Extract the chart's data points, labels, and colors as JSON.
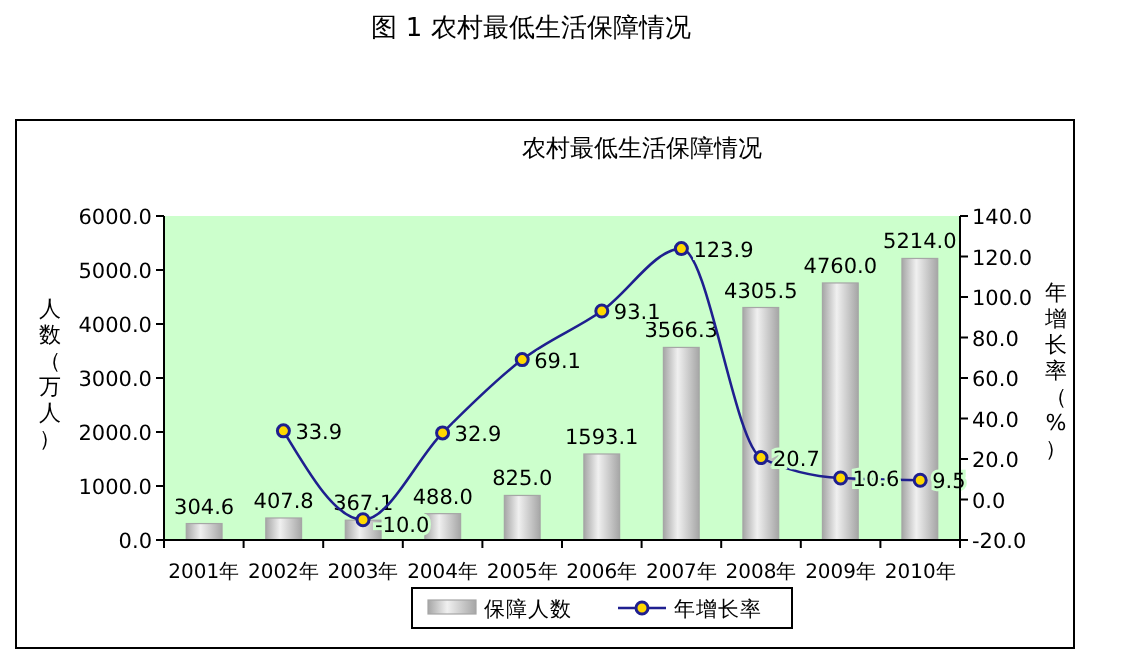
{
  "chart_data": {
    "type": "bar",
    "title": "农村最低生活保障情况",
    "annotations": [
      "图 1 农村最低生活保障情况"
    ],
    "ylabel": "人数（万人）",
    "y2label": "年增长率（%）",
    "categories": [
      "2001年",
      "2002年",
      "2003年",
      "2004年",
      "2005年",
      "2006年",
      "2007年",
      "2008年",
      "2009年",
      "2010年"
    ],
    "series": [
      {
        "name": "保障人数",
        "color": "#a6a6a6",
        "values": [
          304.6,
          407.8,
          367.1,
          488.0,
          825.0,
          1593.1,
          3566.3,
          4305.5,
          4760.0,
          5214.0
        ],
        "value_labels": [
          "304.6",
          "407.8",
          "367.1",
          "488.0",
          "825.0",
          "1593.1",
          "3566.3",
          "4305.5",
          "4760.0",
          "5214.0"
        ]
      },
      {
        "name": "年增长率",
        "type": "line",
        "axis": "y2",
        "color": "#1f1f8f",
        "marker": "circle",
        "values": [
          null,
          33.9,
          -10.0,
          32.9,
          69.1,
          93.1,
          123.9,
          20.7,
          10.6,
          9.5
        ],
        "value_labels": [
          null,
          "33.9",
          "-10.0",
          "32.9",
          "69.1",
          "93.1",
          "123.9",
          "20.7",
          "10.6",
          "9.5"
        ]
      }
    ],
    "ylim": [
      0,
      6000
    ],
    "yticks": [
      {
        "value": 0,
        "label": "0.0"
      },
      {
        "value": 1000,
        "label": "1000.0"
      },
      {
        "value": 2000,
        "label": "2000.0"
      },
      {
        "value": 3000,
        "label": "3000.0"
      },
      {
        "value": 4000,
        "label": "4000.0"
      },
      {
        "value": 5000,
        "label": "5000.0"
      },
      {
        "value": 6000,
        "label": "6000.0"
      }
    ],
    "y2lim": [
      -20,
      140
    ],
    "y2ticks": [
      {
        "value": -20,
        "label": "-20.0"
      },
      {
        "value": 0,
        "label": "0.0"
      },
      {
        "value": 20,
        "label": "20.0"
      },
      {
        "value": 40,
        "label": "40.0"
      },
      {
        "value": 60,
        "label": "60.0"
      },
      {
        "value": 80,
        "label": "80.0"
      },
      {
        "value": 100,
        "label": "100.0"
      },
      {
        "value": 120,
        "label": "120.0"
      },
      {
        "value": 140,
        "label": "140.0"
      }
    ],
    "grid": false,
    "legend": "bottom"
  }
}
